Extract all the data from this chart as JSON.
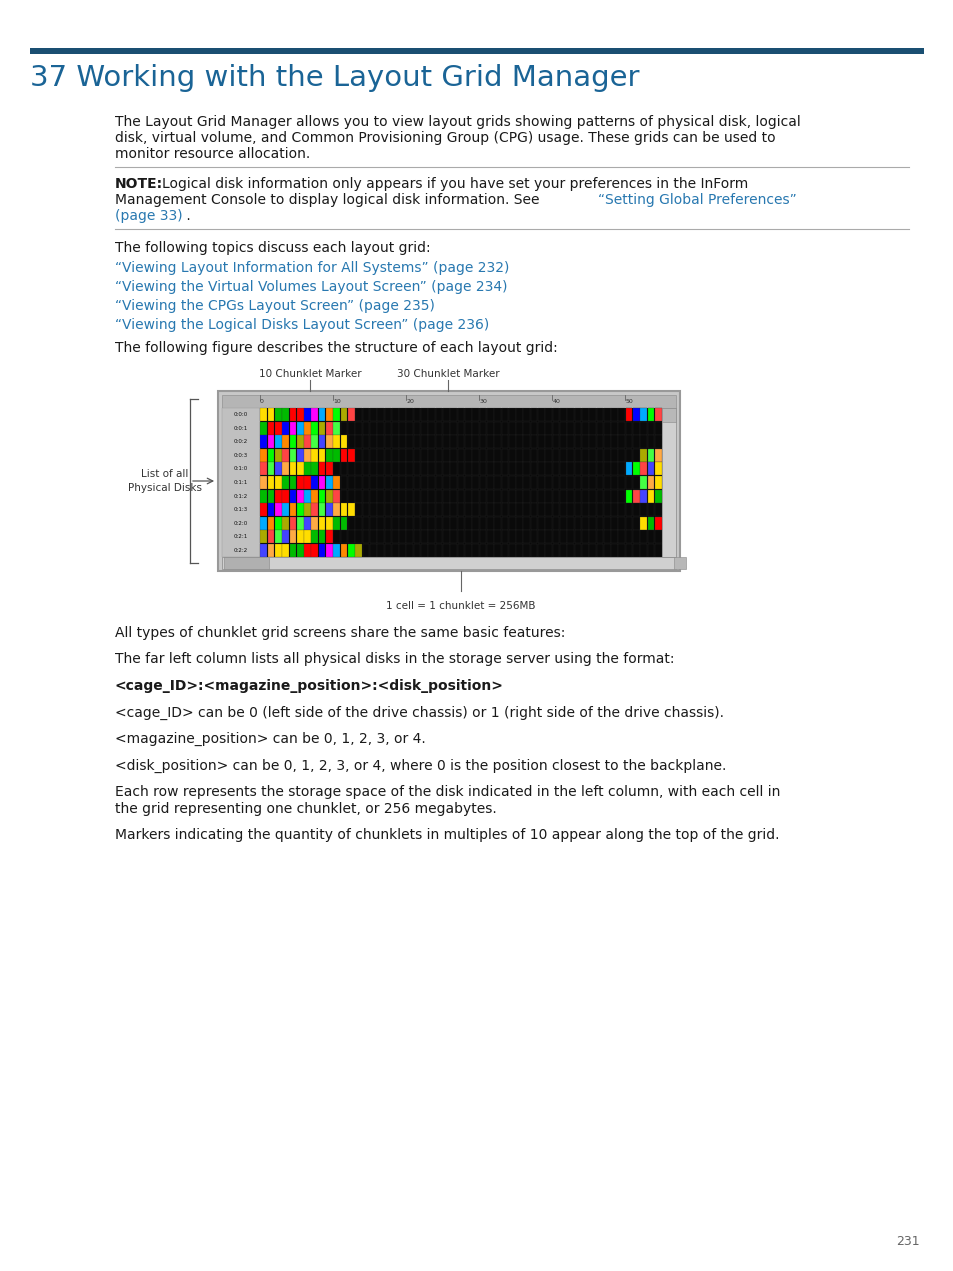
{
  "title": "37 Working with the Layout Grid Manager",
  "title_color": "#1a6496",
  "title_bar_color": "#1a4f72",
  "body_text_color": "#1a1a1a",
  "link_color": "#2878b0",
  "note_color": "#1a1a1a",
  "background_color": "#ffffff",
  "page_number": "231",
  "para1_lines": [
    "The Layout Grid Manager allows you to view layout grids showing patterns of physical disk, logical",
    "disk, virtual volume, and Common Provisioning Group (CPG) usage. These grids can be used to",
    "monitor resource allocation."
  ],
  "note_label": "NOTE:",
  "note_line1_pre": "NOTE:",
  "note_line1_rest": "   Logical disk information only appears if you have set your preferences in the InForm",
  "note_line2": "Management Console to display logical disk information. See “Setting Global Preferences”",
  "note_line2_pre": "Management Console to display logical disk information. See ",
  "note_line2_link": "“Setting Global Preferences”",
  "note_line3_link": "(page 33)",
  "note_line3_end": " .",
  "follow_text": "The following topics discuss each layout grid:",
  "links": [
    "“Viewing Layout Information for All Systems” (page 232)",
    "“Viewing the Virtual Volumes Layout Screen” (page 234)",
    "“Viewing the CPGs Layout Screen” (page 235)",
    "“Viewing the Logical Disks Layout Screen” (page 236)"
  ],
  "figure_intro": "The following figure describes the structure of each layout grid:",
  "marker1_label": "10 Chunklet Marker",
  "marker2_label": "30 Chunklet Marker",
  "list_label_line1": "List of all",
  "list_label_line2": "Physical Disks",
  "cell_label": "1 cell = 1 chunklet = 256MB",
  "body_paras": [
    {
      "lines": [
        "All types of chunklet grid screens share the same basic features:"
      ],
      "bold": false
    },
    {
      "lines": [
        "The far left column lists all physical disks in the storage server using the format:"
      ],
      "bold": false
    },
    {
      "lines": [
        "<cage_ID>:<magazine_position>:<disk_position>"
      ],
      "bold": true
    },
    {
      "lines": [
        "<cage_ID> can be 0 (left side of the drive chassis) or 1 (right side of the drive chassis)."
      ],
      "bold": false
    },
    {
      "lines": [
        "<magazine_position> can be 0, 1, 2, 3, or 4."
      ],
      "bold": false
    },
    {
      "lines": [
        "<disk_position> can be 0, 1, 2, 3, or 4, where 0 is the position closest to the backplane."
      ],
      "bold": false
    },
    {
      "lines": [
        "Each row represents the storage space of the disk indicated in the left column, with each cell in",
        "the grid representing one chunklet, or 256 megabytes."
      ],
      "bold": false
    },
    {
      "lines": [
        "Markers indicating the quantity of chunklets in multiples of 10 appear along the top of the grid."
      ],
      "bold": false
    }
  ]
}
